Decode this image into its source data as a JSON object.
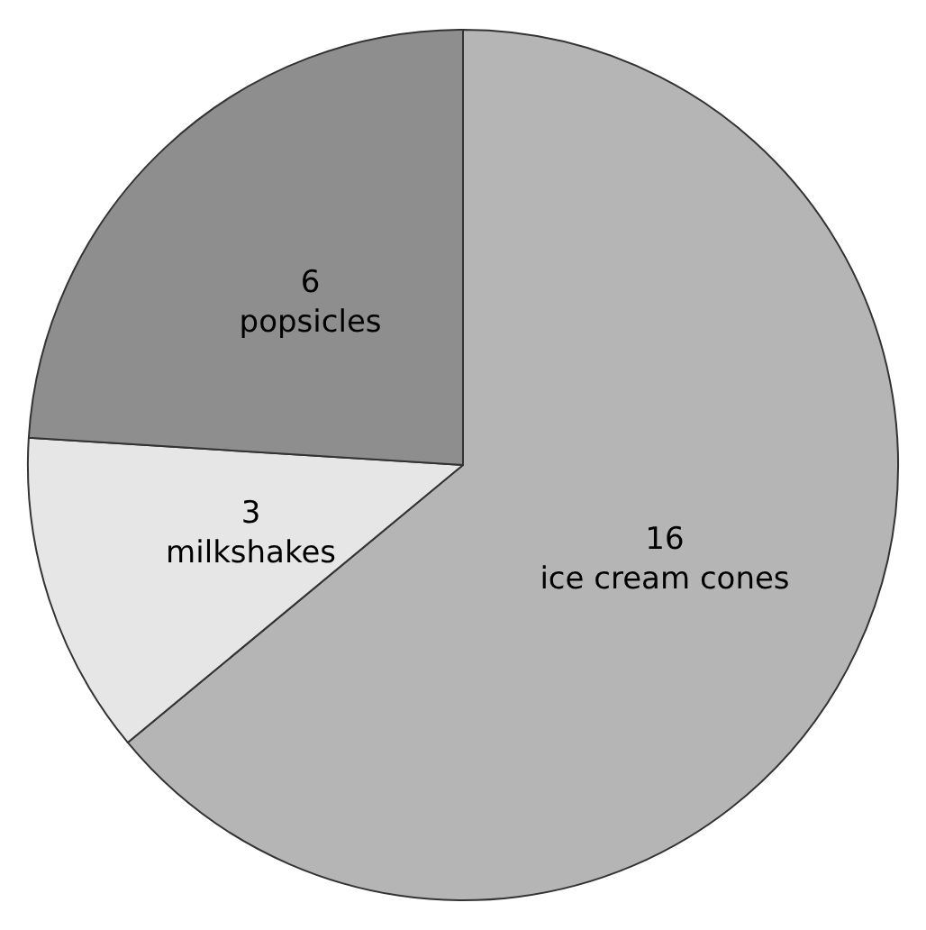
{
  "chart_data": {
    "type": "pie",
    "categories": [
      "ice cream cones",
      "milkshakes",
      "popsicles"
    ],
    "values": [
      16,
      3,
      6
    ],
    "colors": [
      "#b5b5b5",
      "#e6e6e6",
      "#8e8e8e"
    ],
    "data_labels": true,
    "legend": false
  }
}
